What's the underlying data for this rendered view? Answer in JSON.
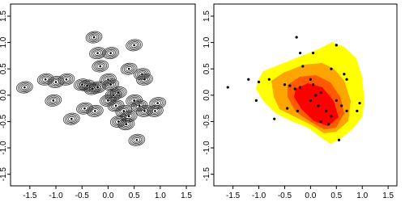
{
  "chart_data": [
    {
      "type": "scatter",
      "marker": "ellipse",
      "color": "#000000",
      "x": [
        -1.6,
        -1.2,
        -1.0,
        -0.8,
        -1.05,
        -0.7,
        -0.5,
        -0.4,
        -0.3,
        -0.2,
        -0.45,
        -0.25,
        -0.27,
        -0.2,
        -0.15,
        0.05,
        0.5,
        0.4,
        0.65,
        0.7,
        0.0,
        0.05,
        0.1,
        0.0,
        0.15,
        0.2,
        0.35,
        0.3,
        0.4,
        0.5,
        0.6,
        0.7,
        0.95,
        0.9,
        0.55,
        0.2
      ],
      "y": [
        0.15,
        0.3,
        0.25,
        0.3,
        -0.1,
        -0.45,
        0.2,
        0.18,
        0.12,
        0.15,
        -0.25,
        -0.3,
        1.1,
        0.8,
        0.55,
        0.8,
        0.95,
        0.5,
        0.4,
        0.3,
        0.3,
        0.2,
        0.0,
        -0.1,
        -0.2,
        -0.5,
        -0.55,
        -0.3,
        -0.4,
        -0.1,
        -0.2,
        -0.3,
        -0.15,
        -0.3,
        -0.85,
        0.05
      ],
      "xlim": [
        -1.87,
        1.67
      ],
      "ylim": [
        -1.72,
        1.73
      ],
      "xticks": [
        -1.5,
        {
          "value": -1,
          "label": "-1.0"
        },
        -0.5,
        {
          "value": 0,
          "label": "0.0"
        },
        0.5,
        {
          "value": 1,
          "label": "1.0"
        },
        1.5
      ],
      "yticks": [
        -1.5,
        {
          "value": -1,
          "label": "-1.0"
        },
        -0.5,
        {
          "value": 0,
          "label": "0.0"
        },
        0.5,
        {
          "value": 1,
          "label": "1.0"
        },
        1.5
      ]
    },
    {
      "type": "scatter",
      "marker": "dot",
      "color": "#000000",
      "x": [
        -1.6,
        -1.2,
        -1.0,
        -0.8,
        -1.05,
        -0.7,
        -0.5,
        -0.4,
        -0.3,
        -0.2,
        -0.45,
        -0.25,
        -0.27,
        -0.2,
        -0.15,
        0.05,
        0.5,
        0.4,
        0.65,
        0.7,
        0.0,
        0.05,
        0.1,
        0.0,
        0.15,
        0.2,
        0.35,
        0.3,
        0.4,
        0.5,
        0.6,
        0.7,
        0.95,
        0.9,
        0.55,
        0.2
      ],
      "y": [
        0.15,
        0.3,
        0.25,
        0.3,
        -0.1,
        -0.45,
        0.2,
        0.18,
        0.12,
        0.15,
        -0.25,
        -0.3,
        1.1,
        0.8,
        0.55,
        0.8,
        0.95,
        0.5,
        0.4,
        0.3,
        0.3,
        0.2,
        0.0,
        -0.1,
        -0.2,
        -0.5,
        -0.55,
        -0.3,
        -0.4,
        -0.1,
        -0.2,
        -0.3,
        -0.15,
        -0.3,
        -0.85,
        0.05
      ],
      "xlim": [
        -1.87,
        1.67
      ],
      "ylim": [
        -1.72,
        1.73
      ],
      "xticks": [
        -1.5,
        {
          "value": -1,
          "label": "-1.0"
        },
        -0.5,
        {
          "value": 0,
          "label": "0.0"
        },
        0.5,
        {
          "value": 1,
          "label": "1.0"
        },
        1.5
      ],
      "yticks": [
        -1.5,
        {
          "value": -1,
          "label": "-1.0"
        },
        -0.5,
        {
          "value": 0,
          "label": "0.0"
        },
        0.5,
        {
          "value": 1,
          "label": "1.0"
        },
        1.5
      ]
    }
  ]
}
